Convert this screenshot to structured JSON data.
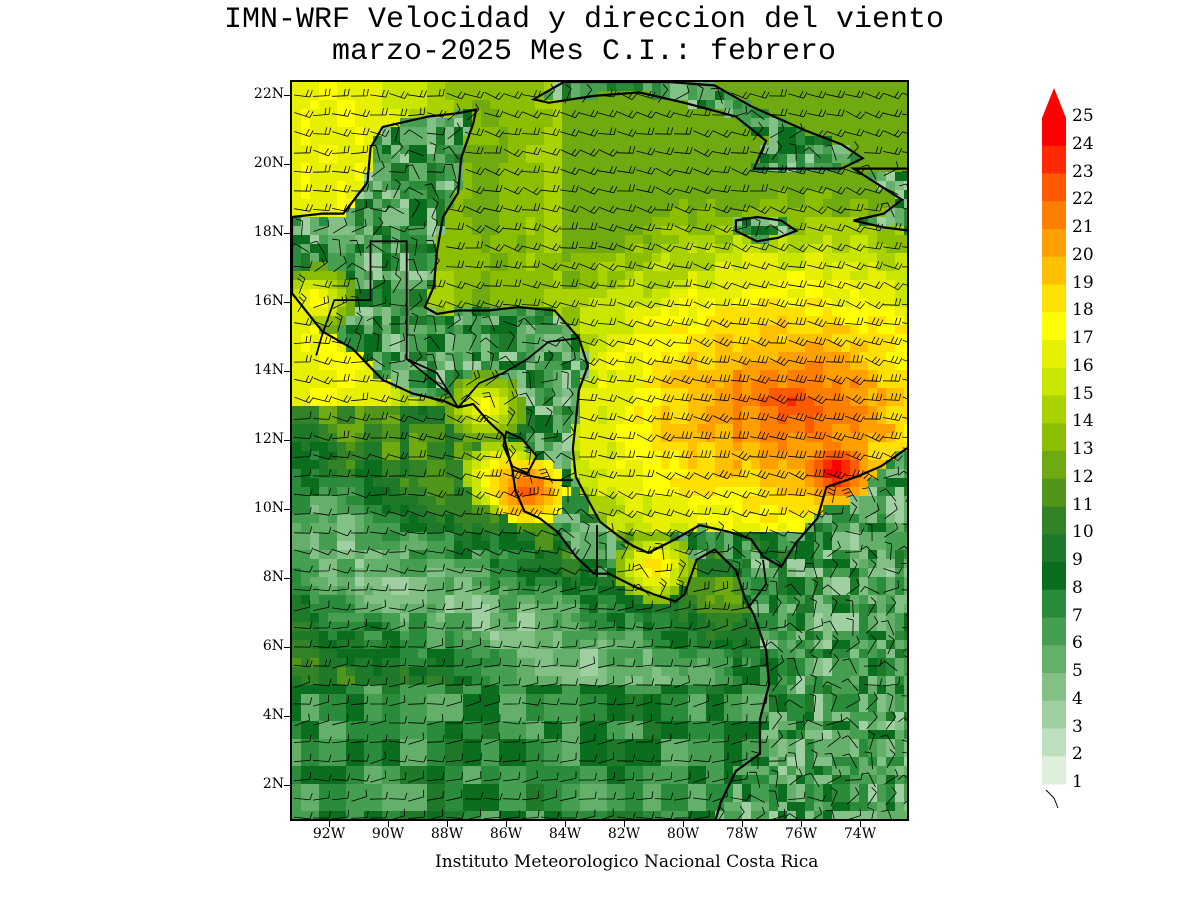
{
  "title": {
    "line1": "IMN-WRF Velocidad y direccion del viento",
    "line2": "marzo-2025 Mes C.I.: febrero"
  },
  "map": {
    "latitude_labels": [
      "22N",
      "20N",
      "18N",
      "16N",
      "14N",
      "12N",
      "10N",
      "8N",
      "6N",
      "4N",
      "2N"
    ],
    "longitude_labels": [
      "92W",
      "90W",
      "88W",
      "86W",
      "84W",
      "82W",
      "80W",
      "78W",
      "76W",
      "74W"
    ],
    "domain": {
      "lon_range": [
        -93.0,
        -72.5
      ],
      "lat_range": [
        1.0,
        22.4
      ]
    }
  },
  "colorbar": {
    "labels": [
      "25",
      "24",
      "23",
      "22",
      "21",
      "20",
      "19",
      "18",
      "17",
      "16",
      "15",
      "14",
      "13",
      "12",
      "11",
      "10",
      "9",
      "8",
      "7",
      "6",
      "5",
      "4",
      "3",
      "2",
      "1"
    ],
    "colors": [
      "#ff0000",
      "#ff2a00",
      "#ff5a00",
      "#ff8000",
      "#ffa000",
      "#ffc000",
      "#ffe000",
      "#ffff00",
      "#e6f000",
      "#c8e600",
      "#aad200",
      "#8cbe00",
      "#6eaa10",
      "#50961a",
      "#328228",
      "#1e7a28",
      "#0a6e1e",
      "#2a8c3a",
      "#469e50",
      "#64b06a",
      "#82c086",
      "#a0d0a2",
      "#bee0be",
      "#dcf0dc"
    ],
    "has_arrow_top": true
  },
  "credit": "Instituto Meteorologico Nacional Costa Rica"
}
